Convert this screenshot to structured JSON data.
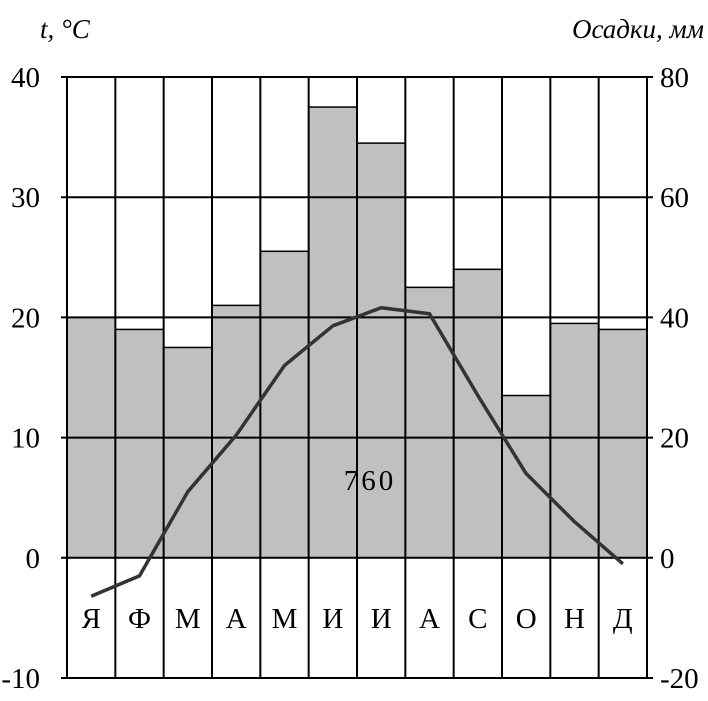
{
  "chart_data": {
    "type": "bar",
    "categories": [
      "Я",
      "Ф",
      "М",
      "А",
      "М",
      "И",
      "И",
      "А",
      "С",
      "О",
      "Н",
      "Д"
    ],
    "series": [
      {
        "type": "bar",
        "axis": "right",
        "values": [
          40,
          38,
          35,
          42,
          51,
          75,
          69,
          45,
          48,
          27,
          39,
          38
        ]
      },
      {
        "type": "line",
        "axis": "left",
        "values": [
          -3.2,
          -1.5,
          5.5,
          10.2,
          16,
          19.3,
          20.8,
          20.3,
          13.5,
          7,
          3,
          -0.5
        ]
      }
    ],
    "left_axis": {
      "label": "t, °C",
      "range": [
        -10,
        40
      ],
      "ticks": [
        "40",
        "30",
        "20",
        "10",
        "0",
        "-10"
      ]
    },
    "right_axis": {
      "label": "Осадки, мм",
      "range": [
        -20,
        80
      ],
      "ticks": [
        "80",
        "60",
        "40",
        "20",
        "0",
        "-20"
      ]
    },
    "annotation": "760",
    "grid": true,
    "colors": {
      "bars": "#c0c0c0",
      "line": "#333333",
      "grid": "#000000"
    }
  }
}
